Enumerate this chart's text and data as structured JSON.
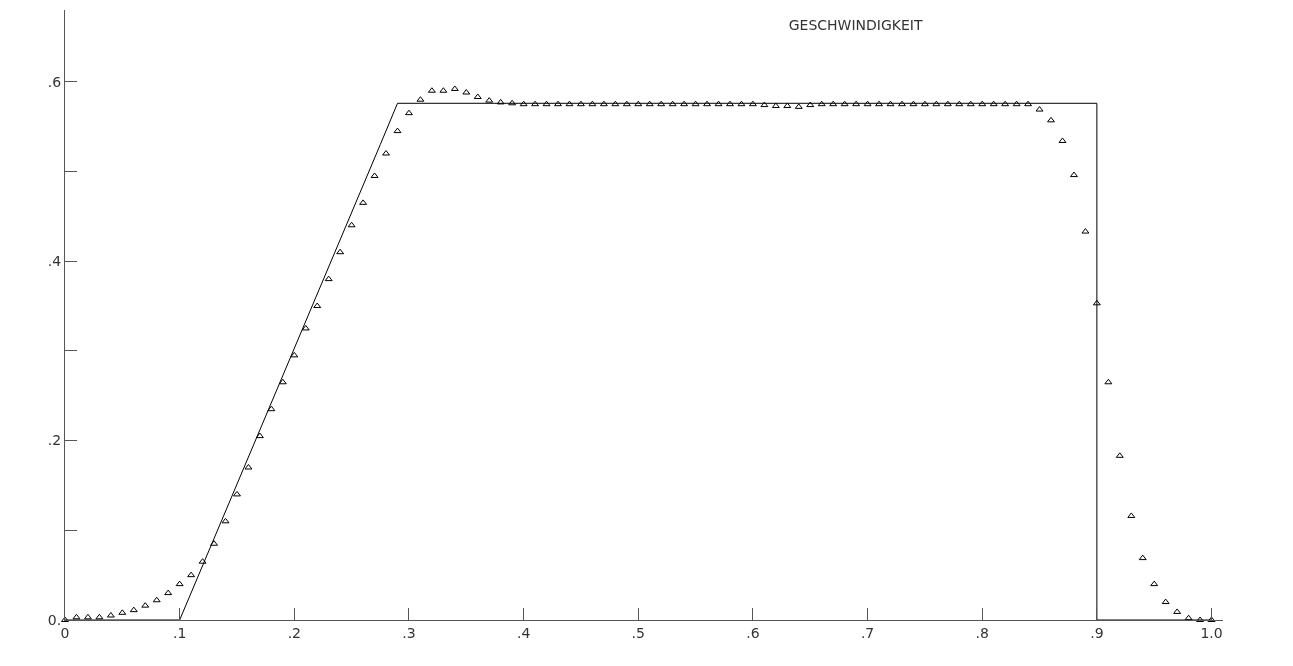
{
  "chart_data": {
    "type": "line",
    "title": "GESCHWINDIGKEIT",
    "xlim": [
      0,
      1.01
    ],
    "ylim": [
      0,
      0.68
    ],
    "xticks": [
      {
        "value": 0,
        "label": "0"
      },
      {
        "value": 0.1,
        "label": ".1"
      },
      {
        "value": 0.2,
        "label": ".2"
      },
      {
        "value": 0.3,
        "label": ".3"
      },
      {
        "value": 0.4,
        "label": ".4"
      },
      {
        "value": 0.5,
        "label": ".5"
      },
      {
        "value": 0.6,
        "label": ".6"
      },
      {
        "value": 0.7,
        "label": ".7"
      },
      {
        "value": 0.8,
        "label": ".8"
      },
      {
        "value": 0.9,
        "label": ".9"
      },
      {
        "value": 1.0,
        "label": "1.0"
      }
    ],
    "yticks": [
      {
        "value": 0,
        "label": "0."
      },
      {
        "value": 0.1,
        "label": null
      },
      {
        "value": 0.2,
        "label": ".2"
      },
      {
        "value": 0.3,
        "label": null
      },
      {
        "value": 0.4,
        "label": ".4"
      },
      {
        "value": 0.5,
        "label": null
      },
      {
        "value": 0.6,
        "label": ".6"
      }
    ],
    "series": [
      {
        "color": "#000000",
        "line_style": "solid",
        "marker": "none",
        "x": [
          0,
          0.1,
          0.275,
          0.29,
          0.9,
          0.9,
          1.0
        ],
        "values": [
          0,
          0,
          0.53,
          0.576,
          0.576,
          0,
          0
        ]
      },
      {
        "type": "scatter",
        "color": "#000000",
        "marker": "triangle",
        "x": [
          0,
          0.01,
          0.02,
          0.03,
          0.04,
          0.05,
          0.06,
          0.07,
          0.08,
          0.09,
          0.1,
          0.11,
          0.12,
          0.13,
          0.14,
          0.15,
          0.16,
          0.17,
          0.18,
          0.19,
          0.2,
          0.21,
          0.22,
          0.23,
          0.24,
          0.25,
          0.26,
          0.27,
          0.28,
          0.29,
          0.3,
          0.31,
          0.32,
          0.33,
          0.34,
          0.35,
          0.36,
          0.37,
          0.38,
          0.39,
          0.4,
          0.41,
          0.42,
          0.43,
          0.44,
          0.45,
          0.46,
          0.47,
          0.48,
          0.49,
          0.5,
          0.51,
          0.52,
          0.53,
          0.54,
          0.55,
          0.56,
          0.57,
          0.58,
          0.59,
          0.6,
          0.61,
          0.62,
          0.63,
          0.64,
          0.65,
          0.66,
          0.67,
          0.68,
          0.69,
          0.7,
          0.71,
          0.72,
          0.73,
          0.74,
          0.75,
          0.76,
          0.77,
          0.78,
          0.79,
          0.8,
          0.81,
          0.82,
          0.83,
          0.84,
          0.85,
          0.86,
          0.87,
          0.88,
          0.89,
          0.9,
          0.91,
          0.92,
          0.93,
          0.94,
          0.95,
          0.96,
          0.97,
          0.98,
          0.99,
          1.0
        ],
        "values": [
          0,
          0.003,
          0.003,
          0.003,
          0.005,
          0.008,
          0.011,
          0.016,
          0.022,
          0.03,
          0.04,
          0.05,
          0.065,
          0.085,
          0.11,
          0.14,
          0.17,
          0.205,
          0.235,
          0.265,
          0.295,
          0.325,
          0.35,
          0.38,
          0.41,
          0.44,
          0.465,
          0.495,
          0.52,
          0.545,
          0.565,
          0.58,
          0.59,
          0.59,
          0.592,
          0.588,
          0.583,
          0.579,
          0.577,
          0.576,
          0.575,
          0.575,
          0.575,
          0.575,
          0.575,
          0.575,
          0.575,
          0.575,
          0.575,
          0.575,
          0.575,
          0.575,
          0.575,
          0.575,
          0.575,
          0.575,
          0.575,
          0.575,
          0.575,
          0.575,
          0.575,
          0.574,
          0.573,
          0.573,
          0.572,
          0.574,
          0.575,
          0.575,
          0.575,
          0.575,
          0.575,
          0.575,
          0.575,
          0.575,
          0.575,
          0.575,
          0.575,
          0.575,
          0.575,
          0.575,
          0.575,
          0.575,
          0.575,
          0.575,
          0.575,
          0.569,
          0.557,
          0.534,
          0.496,
          0.433,
          0.353,
          0.265,
          0.183,
          0.116,
          0.069,
          0.04,
          0.02,
          0.009,
          0.002,
          0,
          0
        ]
      }
    ]
  }
}
